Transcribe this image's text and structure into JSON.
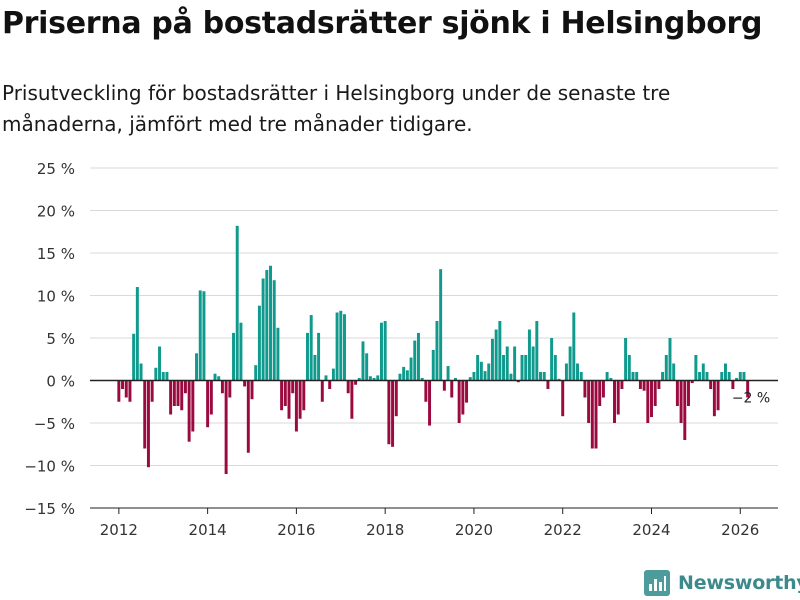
{
  "header": {
    "title": "Priserna på bostadsrätter sjönk i Helsingborg",
    "subtitle": "Prisutveckling för bostadsrätter i Helsingborg under de senaste tre månaderna, jämfört med tre månader tidigare."
  },
  "brand": {
    "name": "Newsworthy"
  },
  "colors": {
    "positive": "#0f9a8d",
    "negative": "#9b0a3f",
    "grid": "#d9d9d9",
    "axis": "#222222",
    "brand": "#3c8a8c"
  },
  "chart_data": {
    "type": "bar",
    "title": "Priserna på bostadsrätter sjönk i Helsingborg",
    "xlabel": "",
    "ylabel": "",
    "ylim": [
      -15,
      25
    ],
    "xlim": [
      2011.35,
      2026.85
    ],
    "y_ticks": [
      -15,
      -10,
      -5,
      0,
      5,
      10,
      15,
      20,
      25
    ],
    "y_tick_labels": [
      "−15 %",
      "−10 %",
      "−5 %",
      "0 %",
      "5 %",
      "10 %",
      "15 %",
      "20 %",
      "25 %"
    ],
    "x_ticks": [
      2012,
      2014,
      2016,
      2018,
      2020,
      2022,
      2024,
      2026
    ],
    "x_tick_labels": [
      "2012",
      "2014",
      "2016",
      "2018",
      "2020",
      "2022",
      "2024",
      "2026"
    ],
    "annotation": {
      "text": "−2 %",
      "x": 2026.17,
      "y": -2
    },
    "series": [
      {
        "name": "Prisutveckling",
        "start_year": 2012,
        "start_month": 1,
        "frequency": "monthly",
        "values": [
          -2.5,
          -1,
          -2,
          -2.5,
          5.5,
          11,
          2,
          -8,
          -10.2,
          -2.5,
          1.5,
          4,
          1,
          1,
          -4,
          -3,
          -3,
          -3.5,
          -1.5,
          -7.2,
          -6,
          3.2,
          10.6,
          10.5,
          -5.5,
          -4,
          0.8,
          0.5,
          -1.5,
          -11,
          -2,
          5.6,
          18.2,
          6.8,
          -0.7,
          -8.5,
          -2.2,
          1.8,
          8.8,
          12,
          13,
          13.5,
          11.8,
          6.2,
          -3.5,
          -3,
          -4.5,
          -1.5,
          -6,
          -4.5,
          -3.5,
          5.6,
          7.7,
          3,
          5.6,
          -2.5,
          0.6,
          -1,
          1.4,
          8,
          8.2,
          7.8,
          -1.5,
          -4.5,
          -0.5,
          0.3,
          4.6,
          3.2,
          0.5,
          0.3,
          0.6,
          6.8,
          7,
          -7.5,
          -7.8,
          -4.2,
          0.8,
          1.6,
          1.2,
          2.7,
          4.7,
          5.6,
          0.3,
          -2.5,
          -5.3,
          3.6,
          7,
          13.1,
          -1.2,
          1.7,
          -2,
          0.3,
          -5,
          -4,
          -2.6,
          0.4,
          1,
          3,
          2.2,
          1.1,
          2,
          4.9,
          6,
          7,
          3,
          4,
          0.8,
          4,
          -0.2,
          3,
          3,
          6,
          4,
          7,
          1,
          1,
          -1,
          5,
          3,
          0.2,
          -4.2,
          2,
          4,
          8,
          2,
          1,
          -2,
          -5,
          -8,
          -8,
          -3,
          -2,
          1,
          0.3,
          -5,
          -4,
          -1,
          5,
          3,
          1,
          1,
          -1,
          -1.2,
          -5,
          -4.3,
          -3,
          -1,
          1,
          3,
          5,
          2,
          -3,
          -5,
          -7,
          -3,
          -0.3,
          3,
          1,
          2,
          1,
          -1,
          -4.2,
          -3.5,
          1,
          2,
          1,
          -1,
          0.3,
          1,
          1,
          -2
        ]
      }
    ]
  }
}
